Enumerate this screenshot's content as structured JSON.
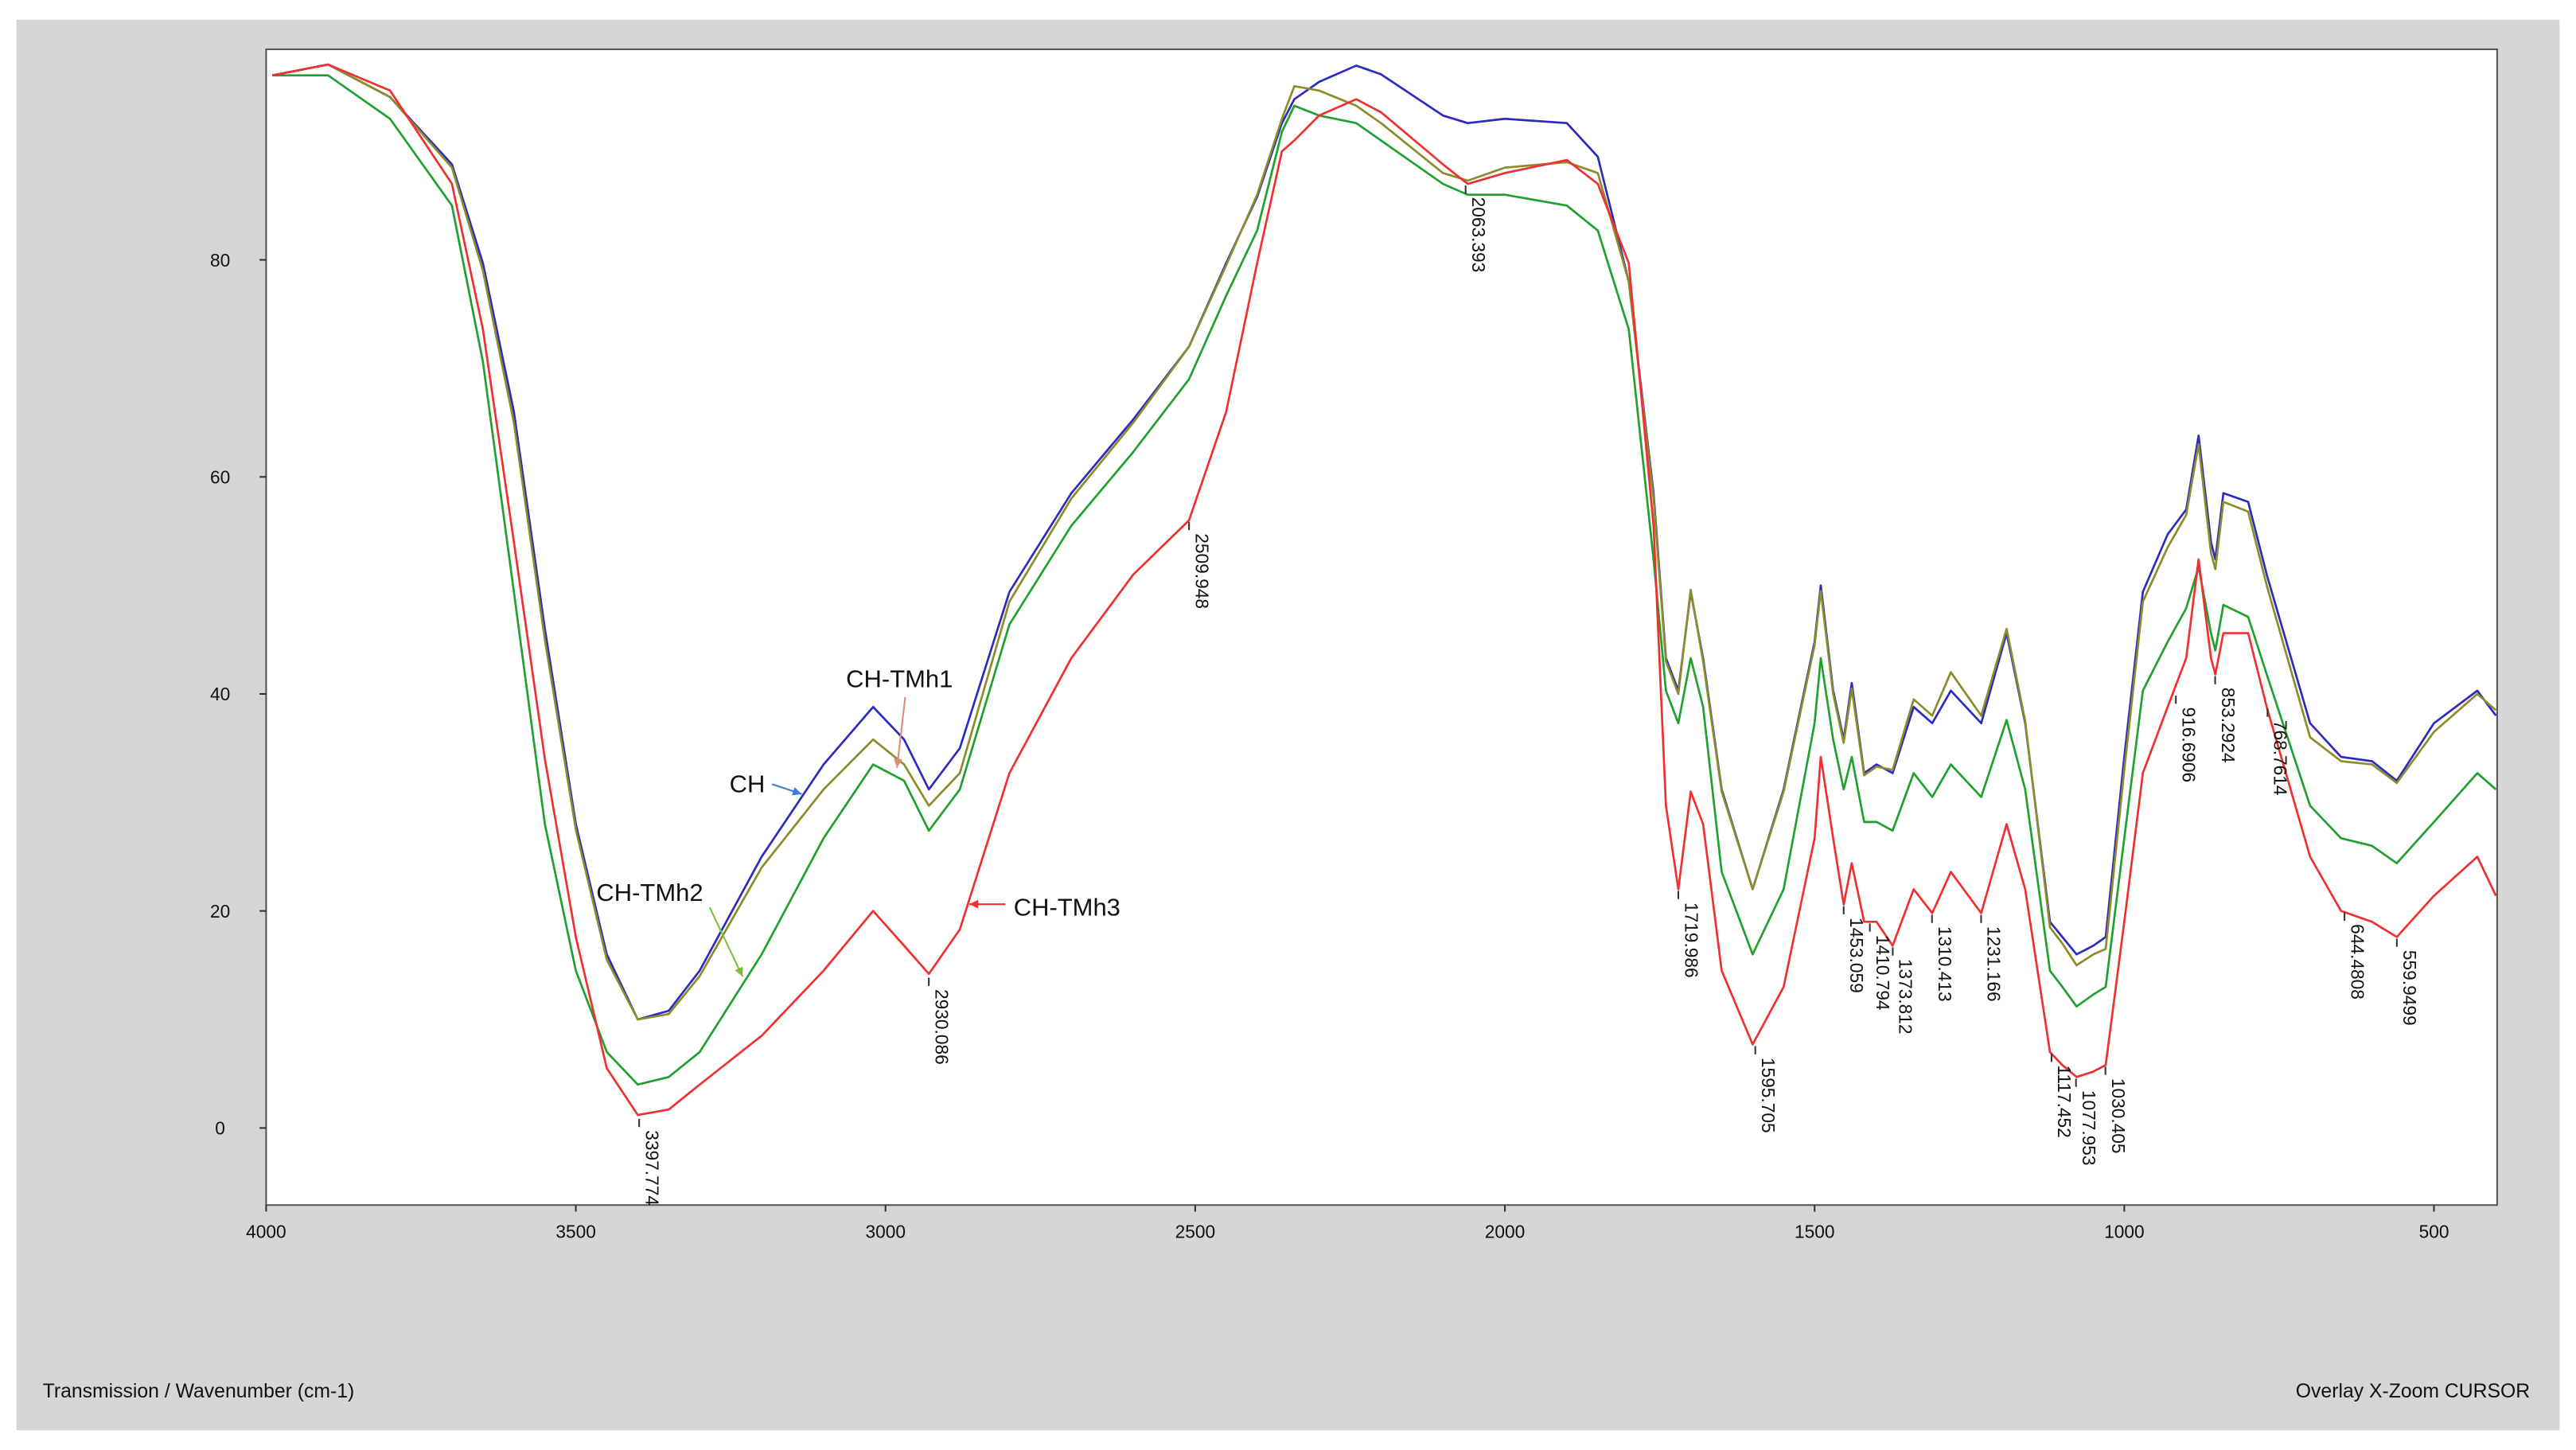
{
  "chart_data": {
    "type": "line",
    "axis_label": "Transmission / Wavenumber (cm-1)",
    "status": "Overlay X-Zoom CURSOR",
    "xlim": [
      4000,
      398
    ],
    "ylim": [
      -7.1,
      99.4
    ],
    "xticks": [
      4000,
      3500,
      3000,
      2500,
      2000,
      1500,
      1000,
      500
    ],
    "yticks": [
      0,
      20,
      40,
      60,
      80
    ],
    "x": [
      3990,
      3900,
      3800,
      3700,
      3650,
      3600,
      3550,
      3500,
      3450,
      3400,
      3350,
      3300,
      3200,
      3100,
      3020,
      2970,
      2930,
      2880,
      2800,
      2700,
      2600,
      2510,
      2450,
      2400,
      2360,
      2340,
      2300,
      2240,
      2200,
      2100,
      2060,
      2000,
      1900,
      1850,
      1800,
      1760,
      1740,
      1720,
      1700,
      1680,
      1650,
      1600,
      1550,
      1500,
      1490,
      1470,
      1453,
      1440,
      1420,
      1400,
      1374,
      1340,
      1310,
      1280,
      1231,
      1190,
      1160,
      1120,
      1100,
      1077,
      1050,
      1030,
      1000,
      970,
      930,
      900,
      880,
      860,
      853,
      840,
      800,
      770,
      700,
      650,
      600,
      560,
      500,
      430,
      400
    ],
    "series": [
      {
        "name": "CH",
        "color": "#2b2bbf",
        "values": [
          97,
          98,
          95,
          88.8,
          79.7,
          66,
          46,
          28,
          16,
          10,
          10.8,
          14.5,
          25,
          33.5,
          38.8,
          35.8,
          31.2,
          35,
          49.4,
          58.5,
          65.3,
          72,
          79.7,
          85.8,
          92.6,
          94.8,
          96.4,
          97.9,
          97.1,
          93.3,
          92.6,
          93,
          92.6,
          89.5,
          78,
          58.5,
          43.3,
          40.3,
          49.4,
          43.3,
          31.2,
          22,
          31.2,
          44.8,
          50,
          40.3,
          35.8,
          41,
          32.7,
          33.5,
          32.7,
          38.8,
          37.3,
          40.3,
          37.3,
          45.6,
          37.3,
          19,
          17.6,
          16,
          16.8,
          17.6,
          34.2,
          49.4,
          54.7,
          57,
          63.8,
          54,
          52.4,
          58.5,
          57.7,
          51,
          37.3,
          34.2,
          33.8,
          32,
          37.3,
          40.3,
          38
        ]
      },
      {
        "name": "CH-TMh1",
        "color": "#8c8c2a",
        "values": [
          97,
          98,
          95,
          88.5,
          79,
          65,
          45,
          27.5,
          15.5,
          10,
          10.5,
          14,
          24,
          31.2,
          35.8,
          33.5,
          29.7,
          32.7,
          48.5,
          58,
          65,
          72,
          79.5,
          86,
          93,
          96,
          95.6,
          94.2,
          92.6,
          88,
          87.3,
          88.5,
          89,
          88,
          78,
          58,
          43,
          40,
          49.6,
          43,
          31,
          22,
          31,
          44.5,
          49.5,
          40,
          35.5,
          40.5,
          32.5,
          33.3,
          33,
          39.5,
          38,
          42,
          38,
          46,
          37.5,
          18.5,
          17,
          15,
          16,
          16.5,
          33,
          48.5,
          53.5,
          56.5,
          63,
          53,
          51.5,
          57.7,
          56.8,
          50,
          36,
          33.8,
          33.5,
          31.8,
          36.5,
          40,
          38.5
        ]
      },
      {
        "name": "CH-TMh2",
        "color": "#1fa02f",
        "values": [
          97,
          97,
          93,
          85,
          70.6,
          49.4,
          28,
          14.5,
          7,
          4,
          4.7,
          7,
          16,
          26.7,
          33.5,
          32,
          27.4,
          31.2,
          46.4,
          55.5,
          62.3,
          69,
          76.7,
          82.7,
          91.8,
          94.2,
          93.3,
          92.6,
          91,
          87,
          86,
          86,
          85,
          82.7,
          73.6,
          52.4,
          40.3,
          37.3,
          43.3,
          38.8,
          23.6,
          16,
          22,
          37.3,
          43.3,
          35.8,
          31.2,
          34.2,
          28.2,
          28.2,
          27.4,
          32.7,
          30.5,
          33.5,
          30.5,
          37.6,
          31.2,
          14.5,
          13,
          11.2,
          12.3,
          13,
          26.7,
          40.3,
          44.8,
          47.9,
          51.7,
          45.6,
          44,
          48.2,
          47.1,
          41.8,
          29.7,
          26.7,
          26,
          24.4,
          28.2,
          32.7,
          31.2
        ]
      },
      {
        "name": "CH-TMh3",
        "color": "#f03030",
        "values": [
          97,
          98,
          95.6,
          87,
          73.6,
          54,
          34,
          17.6,
          5.5,
          1.2,
          1.7,
          4,
          8.5,
          14.5,
          20,
          16.8,
          14.2,
          18.3,
          32.7,
          43.3,
          51,
          56,
          66,
          79.7,
          90,
          91,
          93.3,
          94.8,
          93.6,
          88.8,
          87,
          88,
          89.2,
          87,
          79.7,
          55.5,
          29.7,
          22,
          31,
          28,
          14.5,
          7.7,
          13,
          26.7,
          34.2,
          26.7,
          20.6,
          24.4,
          19,
          19,
          16.8,
          22,
          19.8,
          23.6,
          19.8,
          28,
          22,
          7,
          5.8,
          4.7,
          5.2,
          5.8,
          19,
          32.7,
          38.8,
          43.3,
          52.4,
          43.3,
          41.8,
          45.6,
          45.6,
          38.8,
          25,
          20,
          19,
          17.6,
          21.4,
          25,
          21.4
        ]
      }
    ],
    "annotations": [
      {
        "x": 3397.774,
        "y": 1
      },
      {
        "x": 2930.086,
        "y": 14
      },
      {
        "x": 2509.948,
        "y": 56
      },
      {
        "x": 2063.393,
        "y": 87
      },
      {
        "x": 1719.986,
        "y": 22
      },
      {
        "x": 1595.705,
        "y": 7.7
      },
      {
        "x": 1453.059,
        "y": 20.6
      },
      {
        "x": 1410.794,
        "y": 19
      },
      {
        "x": 1373.812,
        "y": 16.8
      },
      {
        "x": 1310.413,
        "y": 19.8
      },
      {
        "x": 1231.166,
        "y": 19.8
      },
      {
        "x": 1117.452,
        "y": 7
      },
      {
        "x": 1077.953,
        "y": 4.7
      },
      {
        "x": 1030.405,
        "y": 5.8
      },
      {
        "x": 916.6906,
        "y": 40
      },
      {
        "x": 853.2924,
        "y": 41.8
      },
      {
        "x": 768.7614,
        "y": 38.8
      },
      {
        "x": 644.4808,
        "y": 20
      },
      {
        "x": 559.9499,
        "y": 17.6
      }
    ]
  }
}
